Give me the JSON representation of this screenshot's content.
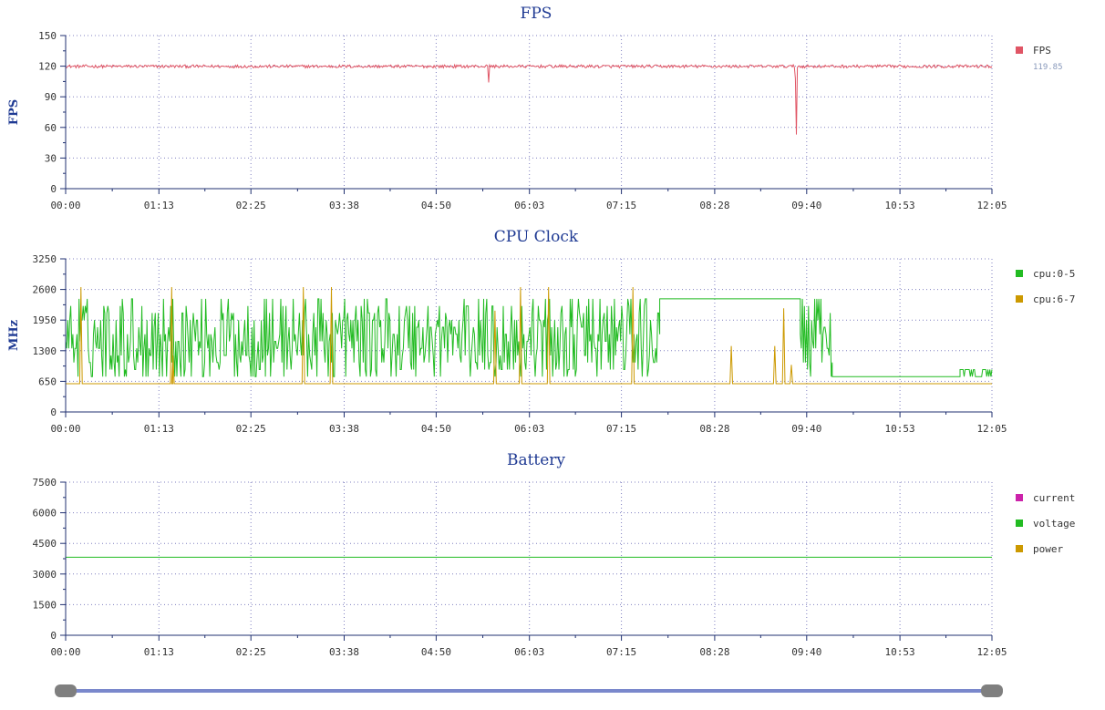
{
  "chart_data": [
    {
      "type": "line",
      "id": "fps",
      "title": "FPS",
      "ylabel": "FPS",
      "ylim": [
        0,
        150
      ],
      "yticks": [
        0,
        30,
        60,
        90,
        120,
        150
      ],
      "xlim": [
        "00:00",
        "12:05"
      ],
      "xticks": [
        "00:00",
        "01:13",
        "02:25",
        "03:38",
        "04:50",
        "06:03",
        "07:15",
        "08:28",
        "09:40",
        "10:53",
        "12:05"
      ],
      "grid": true,
      "legend_position": "right",
      "series": [
        {
          "name": "FPS",
          "color": "#e05565",
          "legend_value": "119.85",
          "baseline": 119.8,
          "noise": 1.5,
          "dips": [
            {
              "x": "05:31",
              "y": 104
            },
            {
              "x": "09:32",
              "y": 53
            },
            {
              "x": "09:31",
              "y": 108
            }
          ]
        }
      ]
    },
    {
      "type": "line",
      "id": "cpu",
      "title": "CPU Clock",
      "ylabel": "MHz",
      "ylim": [
        0,
        3250
      ],
      "yticks": [
        0,
        650,
        1300,
        1950,
        2600,
        3250
      ],
      "xlim": [
        "00:00",
        "12:05"
      ],
      "xticks": [
        "00:00",
        "01:13",
        "02:25",
        "03:38",
        "04:50",
        "06:03",
        "07:15",
        "08:28",
        "09:40",
        "10:53",
        "12:05"
      ],
      "grid": true,
      "legend_position": "right",
      "series": [
        {
          "name": "cpu:0-5",
          "color": "#22bb22",
          "segments": [
            {
              "from": "00:00",
              "to": "07:45",
              "mode": "noisy",
              "min": 750,
              "max": 2400
            },
            {
              "from": "07:45",
              "to": "09:20",
              "mode": "flat",
              "value": 2400
            },
            {
              "from": "09:20",
              "to": "09:35",
              "mode": "flat",
              "value": 2400
            },
            {
              "from": "09:35",
              "to": "10:00",
              "mode": "noisy",
              "min": 700,
              "max": 2400
            },
            {
              "from": "10:00",
              "to": "11:40",
              "mode": "flat",
              "value": 750
            },
            {
              "from": "11:40",
              "to": "12:05",
              "mode": "noisy",
              "min": 600,
              "max": 950
            }
          ]
        },
        {
          "name": "cpu:6-7",
          "color": "#cc9900",
          "baseline": 600,
          "spikes": [
            {
              "x": "00:12",
              "y": 2650
            },
            {
              "x": "01:23",
              "y": 2650
            },
            {
              "x": "01:24",
              "y": 1200
            },
            {
              "x": "03:06",
              "y": 2650
            },
            {
              "x": "03:28",
              "y": 2650
            },
            {
              "x": "05:36",
              "y": 2150
            },
            {
              "x": "05:56",
              "y": 2650
            },
            {
              "x": "06:18",
              "y": 2650
            },
            {
              "x": "07:24",
              "y": 2650
            },
            {
              "x": "08:41",
              "y": 1400
            },
            {
              "x": "09:15",
              "y": 1400
            },
            {
              "x": "09:22",
              "y": 2200
            },
            {
              "x": "09:28",
              "y": 1000
            }
          ]
        }
      ]
    },
    {
      "type": "line",
      "id": "battery",
      "title": "Battery",
      "ylabel": "",
      "ylim": [
        0,
        7500
      ],
      "yticks": [
        0,
        1500,
        3000,
        4500,
        6000,
        7500
      ],
      "xlim": [
        "00:00",
        "12:05"
      ],
      "xticks": [
        "00:00",
        "01:13",
        "02:25",
        "03:38",
        "04:50",
        "06:03",
        "07:15",
        "08:28",
        "09:40",
        "10:53",
        "12:05"
      ],
      "grid": true,
      "legend_position": "right",
      "series": [
        {
          "name": "current",
          "color": "#cc22aa",
          "baseline": 0
        },
        {
          "name": "voltage",
          "color": "#22bb22",
          "baseline": 3820
        },
        {
          "name": "power",
          "color": "#cc9900",
          "baseline": 0
        }
      ]
    }
  ],
  "range_slider": {
    "start": 0,
    "end": 1
  }
}
